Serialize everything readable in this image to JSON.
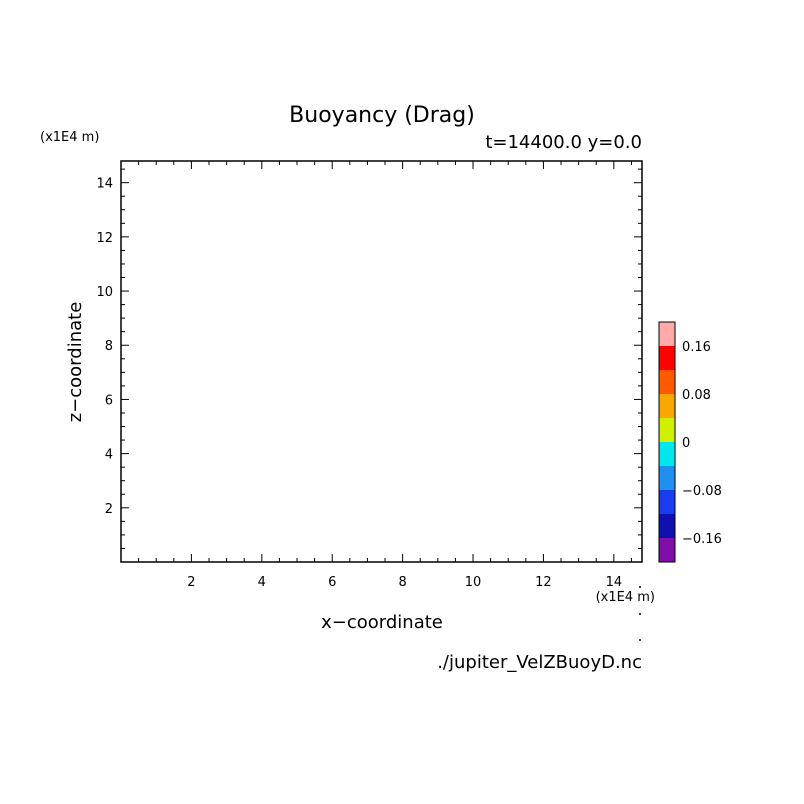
{
  "chart_data": {
    "type": "heatmap",
    "title": "Buoyancy (Drag)",
    "subtitle": "t=14400.0 y=0.0",
    "xlabel": "x−coordinate",
    "ylabel": "z−coordinate",
    "x_unit": "(x1E4 m)",
    "y_unit": "(x1E4 m)",
    "source": "./jupiter_VelZBuoyD.nc",
    "xlim": [
      0,
      14.8
    ],
    "ylim": [
      0,
      14.8
    ],
    "x_ticks": [
      2,
      4,
      6,
      8,
      10,
      12,
      14
    ],
    "y_ticks": [
      2,
      4,
      6,
      8,
      10,
      12,
      14
    ],
    "grid": false,
    "data": [],
    "colorbar": {
      "levels": [
        -0.2,
        -0.16,
        -0.12,
        -0.08,
        -0.04,
        0,
        0.04,
        0.08,
        0.12,
        0.16,
        0.2
      ],
      "colors": [
        "#7f0fa8",
        "#1010b0",
        "#1a3cf0",
        "#1f8ff0",
        "#00e8ee",
        "#d0f000",
        "#f8a800",
        "#ff5a00",
        "#ff0000",
        "#ffaaaa"
      ],
      "labels": [
        {
          "text": "0.16",
          "value": 0.16
        },
        {
          "text": "0.08",
          "value": 0.08
        },
        {
          "text": "0",
          "value": 0
        },
        {
          "text": "−0.08",
          "value": -0.08
        },
        {
          "text": "−0.16",
          "value": -0.16
        }
      ]
    }
  }
}
